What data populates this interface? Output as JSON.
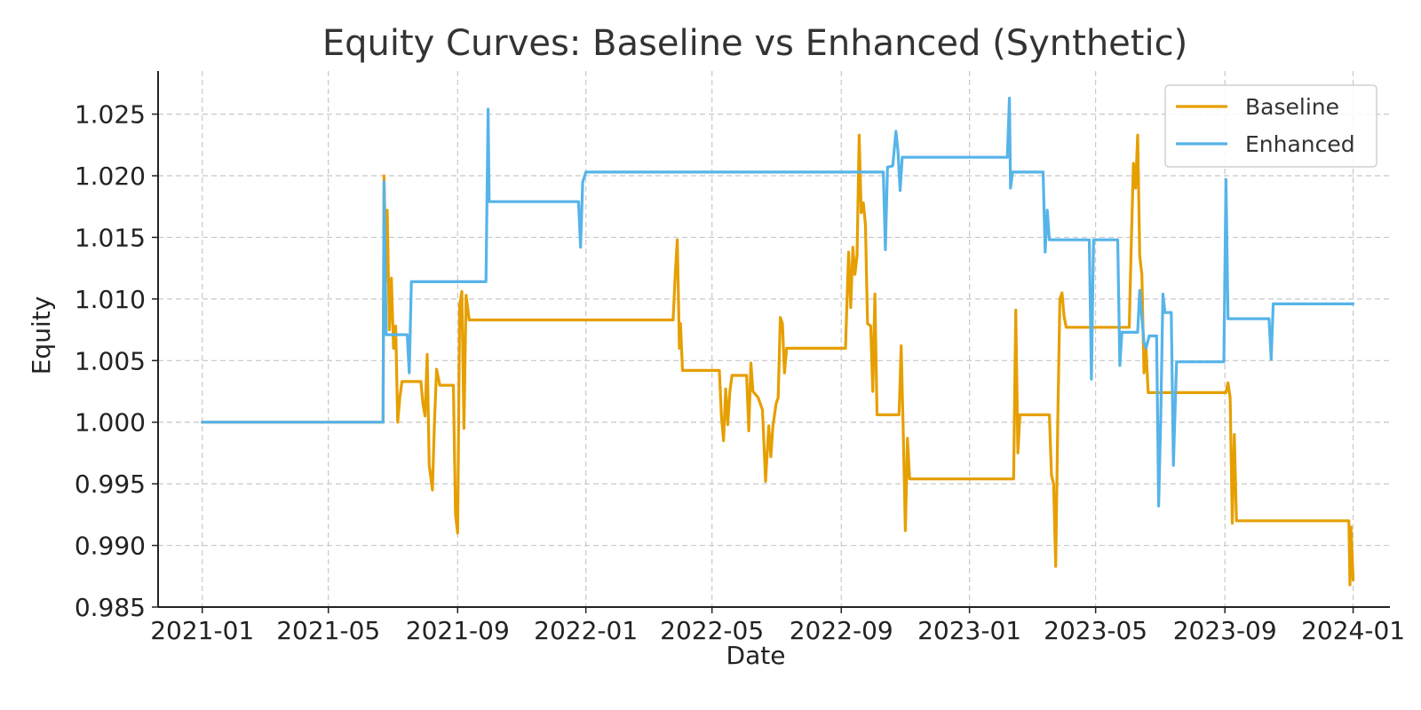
{
  "chart_data": {
    "type": "line",
    "title": "Equity Curves: Baseline vs Enhanced (Synthetic)",
    "xlabel": "Date",
    "ylabel": "Equity",
    "x_axis_type": "date",
    "xlim": [
      "2020-11-20",
      "2024-02-05"
    ],
    "ylim": [
      0.985,
      1.0285
    ],
    "x_ticks": [
      "2021-01",
      "2021-05",
      "2021-09",
      "2022-01",
      "2022-05",
      "2022-09",
      "2023-01",
      "2023-05",
      "2023-09",
      "2024-01"
    ],
    "y_ticks": [
      "0.985",
      "0.990",
      "0.995",
      "1.000",
      "1.005",
      "1.010",
      "1.015",
      "1.020",
      "1.025"
    ],
    "grid": true,
    "legend_position": "top-right",
    "series": [
      {
        "name": "Baseline",
        "color": "#E69F00",
        "points": [
          [
            "2021-01-01",
            1.0
          ],
          [
            "2021-06-22",
            1.0
          ],
          [
            "2021-06-23",
            1.02
          ],
          [
            "2021-06-25",
            1.0115
          ],
          [
            "2021-06-26",
            1.0172
          ],
          [
            "2021-06-28",
            1.0075
          ],
          [
            "2021-06-30",
            1.0117
          ],
          [
            "2021-07-02",
            1.006
          ],
          [
            "2021-07-04",
            1.0078
          ],
          [
            "2021-07-06",
            1.0
          ],
          [
            "2021-07-08",
            1.002
          ],
          [
            "2021-07-10",
            1.0033
          ],
          [
            "2021-07-28",
            1.0033
          ],
          [
            "2021-07-30",
            1.0015
          ],
          [
            "2021-08-01",
            1.0005
          ],
          [
            "2021-08-03",
            1.0055
          ],
          [
            "2021-08-05",
            0.9965
          ],
          [
            "2021-08-08",
            0.9945
          ],
          [
            "2021-08-10",
            1.0
          ],
          [
            "2021-08-12",
            1.0043
          ],
          [
            "2021-08-15",
            1.003
          ],
          [
            "2021-08-28",
            1.003
          ],
          [
            "2021-08-30",
            0.9925
          ],
          [
            "2021-09-01",
            0.991
          ],
          [
            "2021-09-03",
            1.0095
          ],
          [
            "2021-09-05",
            1.0106
          ],
          [
            "2021-09-07",
            0.9995
          ],
          [
            "2021-09-09",
            1.0103
          ],
          [
            "2021-09-12",
            1.0083
          ],
          [
            "2022-03-25",
            1.0083
          ],
          [
            "2022-03-27",
            1.012
          ],
          [
            "2022-03-29",
            1.0148
          ],
          [
            "2022-03-31",
            1.006
          ],
          [
            "2022-04-01",
            1.008
          ],
          [
            "2022-04-03",
            1.0042
          ],
          [
            "2022-05-08",
            1.0042
          ],
          [
            "2022-05-10",
            1.0005
          ],
          [
            "2022-05-12",
            0.9985
          ],
          [
            "2022-05-14",
            1.0027
          ],
          [
            "2022-05-16",
            0.9998
          ],
          [
            "2022-05-18",
            1.0025
          ],
          [
            "2022-05-20",
            1.0038
          ],
          [
            "2022-06-03",
            1.0038
          ],
          [
            "2022-06-05",
            0.9993
          ],
          [
            "2022-06-07",
            1.0048
          ],
          [
            "2022-06-09",
            1.0025
          ],
          [
            "2022-06-14",
            1.002
          ],
          [
            "2022-06-18",
            1.001
          ],
          [
            "2022-06-21",
            0.9952
          ],
          [
            "2022-06-24",
            0.9997
          ],
          [
            "2022-06-26",
            0.9972
          ],
          [
            "2022-06-28",
            0.9997
          ],
          [
            "2022-07-01",
            1.0015
          ],
          [
            "2022-07-03",
            1.002
          ],
          [
            "2022-07-05",
            1.0085
          ],
          [
            "2022-07-07",
            1.008
          ],
          [
            "2022-07-09",
            1.004
          ],
          [
            "2022-07-11",
            1.006
          ],
          [
            "2022-09-05",
            1.006
          ],
          [
            "2022-09-08",
            1.0138
          ],
          [
            "2022-09-10",
            1.0093
          ],
          [
            "2022-09-12",
            1.0142
          ],
          [
            "2022-09-14",
            1.012
          ],
          [
            "2022-09-16",
            1.0135
          ],
          [
            "2022-09-18",
            1.0233
          ],
          [
            "2022-09-20",
            1.017
          ],
          [
            "2022-09-22",
            1.0178
          ],
          [
            "2022-09-24",
            1.016
          ],
          [
            "2022-09-26",
            1.008
          ],
          [
            "2022-09-29",
            1.0078
          ],
          [
            "2022-10-01",
            1.0025
          ],
          [
            "2022-10-03",
            1.0104
          ],
          [
            "2022-10-05",
            1.0006
          ],
          [
            "2022-10-26",
            1.0006
          ],
          [
            "2022-10-28",
            1.0062
          ],
          [
            "2022-10-30",
            0.999
          ],
          [
            "2022-11-01",
            0.9912
          ],
          [
            "2022-11-03",
            0.9987
          ],
          [
            "2022-11-05",
            0.9954
          ],
          [
            "2023-02-12",
            0.9954
          ],
          [
            "2023-02-14",
            1.0091
          ],
          [
            "2023-02-16",
            0.9975
          ],
          [
            "2023-02-18",
            1.0006
          ],
          [
            "2023-03-18",
            1.0006
          ],
          [
            "2023-03-20",
            0.9957
          ],
          [
            "2023-03-22",
            0.995
          ],
          [
            "2023-03-24",
            0.9883
          ],
          [
            "2023-03-26",
            1.0
          ],
          [
            "2023-03-28",
            1.01
          ],
          [
            "2023-03-30",
            1.0105
          ],
          [
            "2023-04-01",
            1.0086
          ],
          [
            "2023-04-03",
            1.0077
          ],
          [
            "2023-06-02",
            1.0077
          ],
          [
            "2023-06-04",
            1.0148
          ],
          [
            "2023-06-06",
            1.021
          ],
          [
            "2023-06-08",
            1.019
          ],
          [
            "2023-06-10",
            1.0233
          ],
          [
            "2023-06-12",
            1.0135
          ],
          [
            "2023-06-14",
            1.012
          ],
          [
            "2023-06-16",
            1.004
          ],
          [
            "2023-06-18",
            1.006
          ],
          [
            "2023-06-20",
            1.0024
          ],
          [
            "2023-09-02",
            1.0024
          ],
          [
            "2023-09-04",
            1.0032
          ],
          [
            "2023-09-06",
            1.002
          ],
          [
            "2023-09-08",
            0.9918
          ],
          [
            "2023-09-10",
            0.999
          ],
          [
            "2023-09-12",
            0.992
          ],
          [
            "2023-12-28",
            0.992
          ],
          [
            "2023-12-29",
            0.9868
          ],
          [
            "2023-12-30",
            0.9915
          ],
          [
            "2024-01-01",
            0.9872
          ]
        ]
      },
      {
        "name": "Enhanced",
        "color": "#56B4E9",
        "points": [
          [
            "2021-01-01",
            1.0
          ],
          [
            "2021-06-22",
            1.0
          ],
          [
            "2021-06-23",
            1.0195
          ],
          [
            "2021-06-25",
            1.0071
          ],
          [
            "2021-07-15",
            1.0071
          ],
          [
            "2021-07-17",
            1.004
          ],
          [
            "2021-07-19",
            1.0114
          ],
          [
            "2021-09-28",
            1.0114
          ],
          [
            "2021-09-30",
            1.0254
          ],
          [
            "2021-10-01",
            1.0179
          ],
          [
            "2021-12-25",
            1.0179
          ],
          [
            "2021-12-27",
            1.0142
          ],
          [
            "2021-12-29",
            1.0195
          ],
          [
            "2022-01-01",
            1.0203
          ],
          [
            "2022-10-11",
            1.0203
          ],
          [
            "2022-10-13",
            1.014
          ],
          [
            "2022-10-15",
            1.0207
          ],
          [
            "2022-10-20",
            1.0208
          ],
          [
            "2022-10-23",
            1.0236
          ],
          [
            "2022-10-25",
            1.022
          ],
          [
            "2022-10-27",
            1.0188
          ],
          [
            "2022-10-29",
            1.0215
          ],
          [
            "2023-02-06",
            1.0215
          ],
          [
            "2023-02-08",
            1.0263
          ],
          [
            "2023-02-09",
            1.019
          ],
          [
            "2023-02-11",
            1.0203
          ],
          [
            "2023-03-12",
            1.0203
          ],
          [
            "2023-03-14",
            1.0138
          ],
          [
            "2023-03-16",
            1.0172
          ],
          [
            "2023-03-18",
            1.0148
          ],
          [
            "2023-04-25",
            1.0148
          ],
          [
            "2023-04-27",
            1.0035
          ],
          [
            "2023-04-29",
            1.0148
          ],
          [
            "2023-05-22",
            1.0148
          ],
          [
            "2023-05-24",
            1.0046
          ],
          [
            "2023-05-26",
            1.0073
          ],
          [
            "2023-06-10",
            1.0073
          ],
          [
            "2023-06-12",
            1.0107
          ],
          [
            "2023-06-14",
            1.0085
          ],
          [
            "2023-06-16",
            1.0065
          ],
          [
            "2023-06-18",
            1.006
          ],
          [
            "2023-06-21",
            1.007
          ],
          [
            "2023-06-28",
            1.007
          ],
          [
            "2023-06-30",
            0.9932
          ],
          [
            "2023-07-02",
            1.0005
          ],
          [
            "2023-07-04",
            1.0104
          ],
          [
            "2023-07-06",
            1.0089
          ],
          [
            "2023-07-12",
            1.0089
          ],
          [
            "2023-07-14",
            0.9965
          ],
          [
            "2023-07-17",
            1.0049
          ],
          [
            "2023-08-31",
            1.0049
          ],
          [
            "2023-09-02",
            1.0197
          ],
          [
            "2023-09-04",
            1.0084
          ],
          [
            "2023-10-13",
            1.0084
          ],
          [
            "2023-10-15",
            1.0051
          ],
          [
            "2023-10-17",
            1.0096
          ],
          [
            "2024-01-01",
            1.0096
          ]
        ]
      }
    ]
  }
}
